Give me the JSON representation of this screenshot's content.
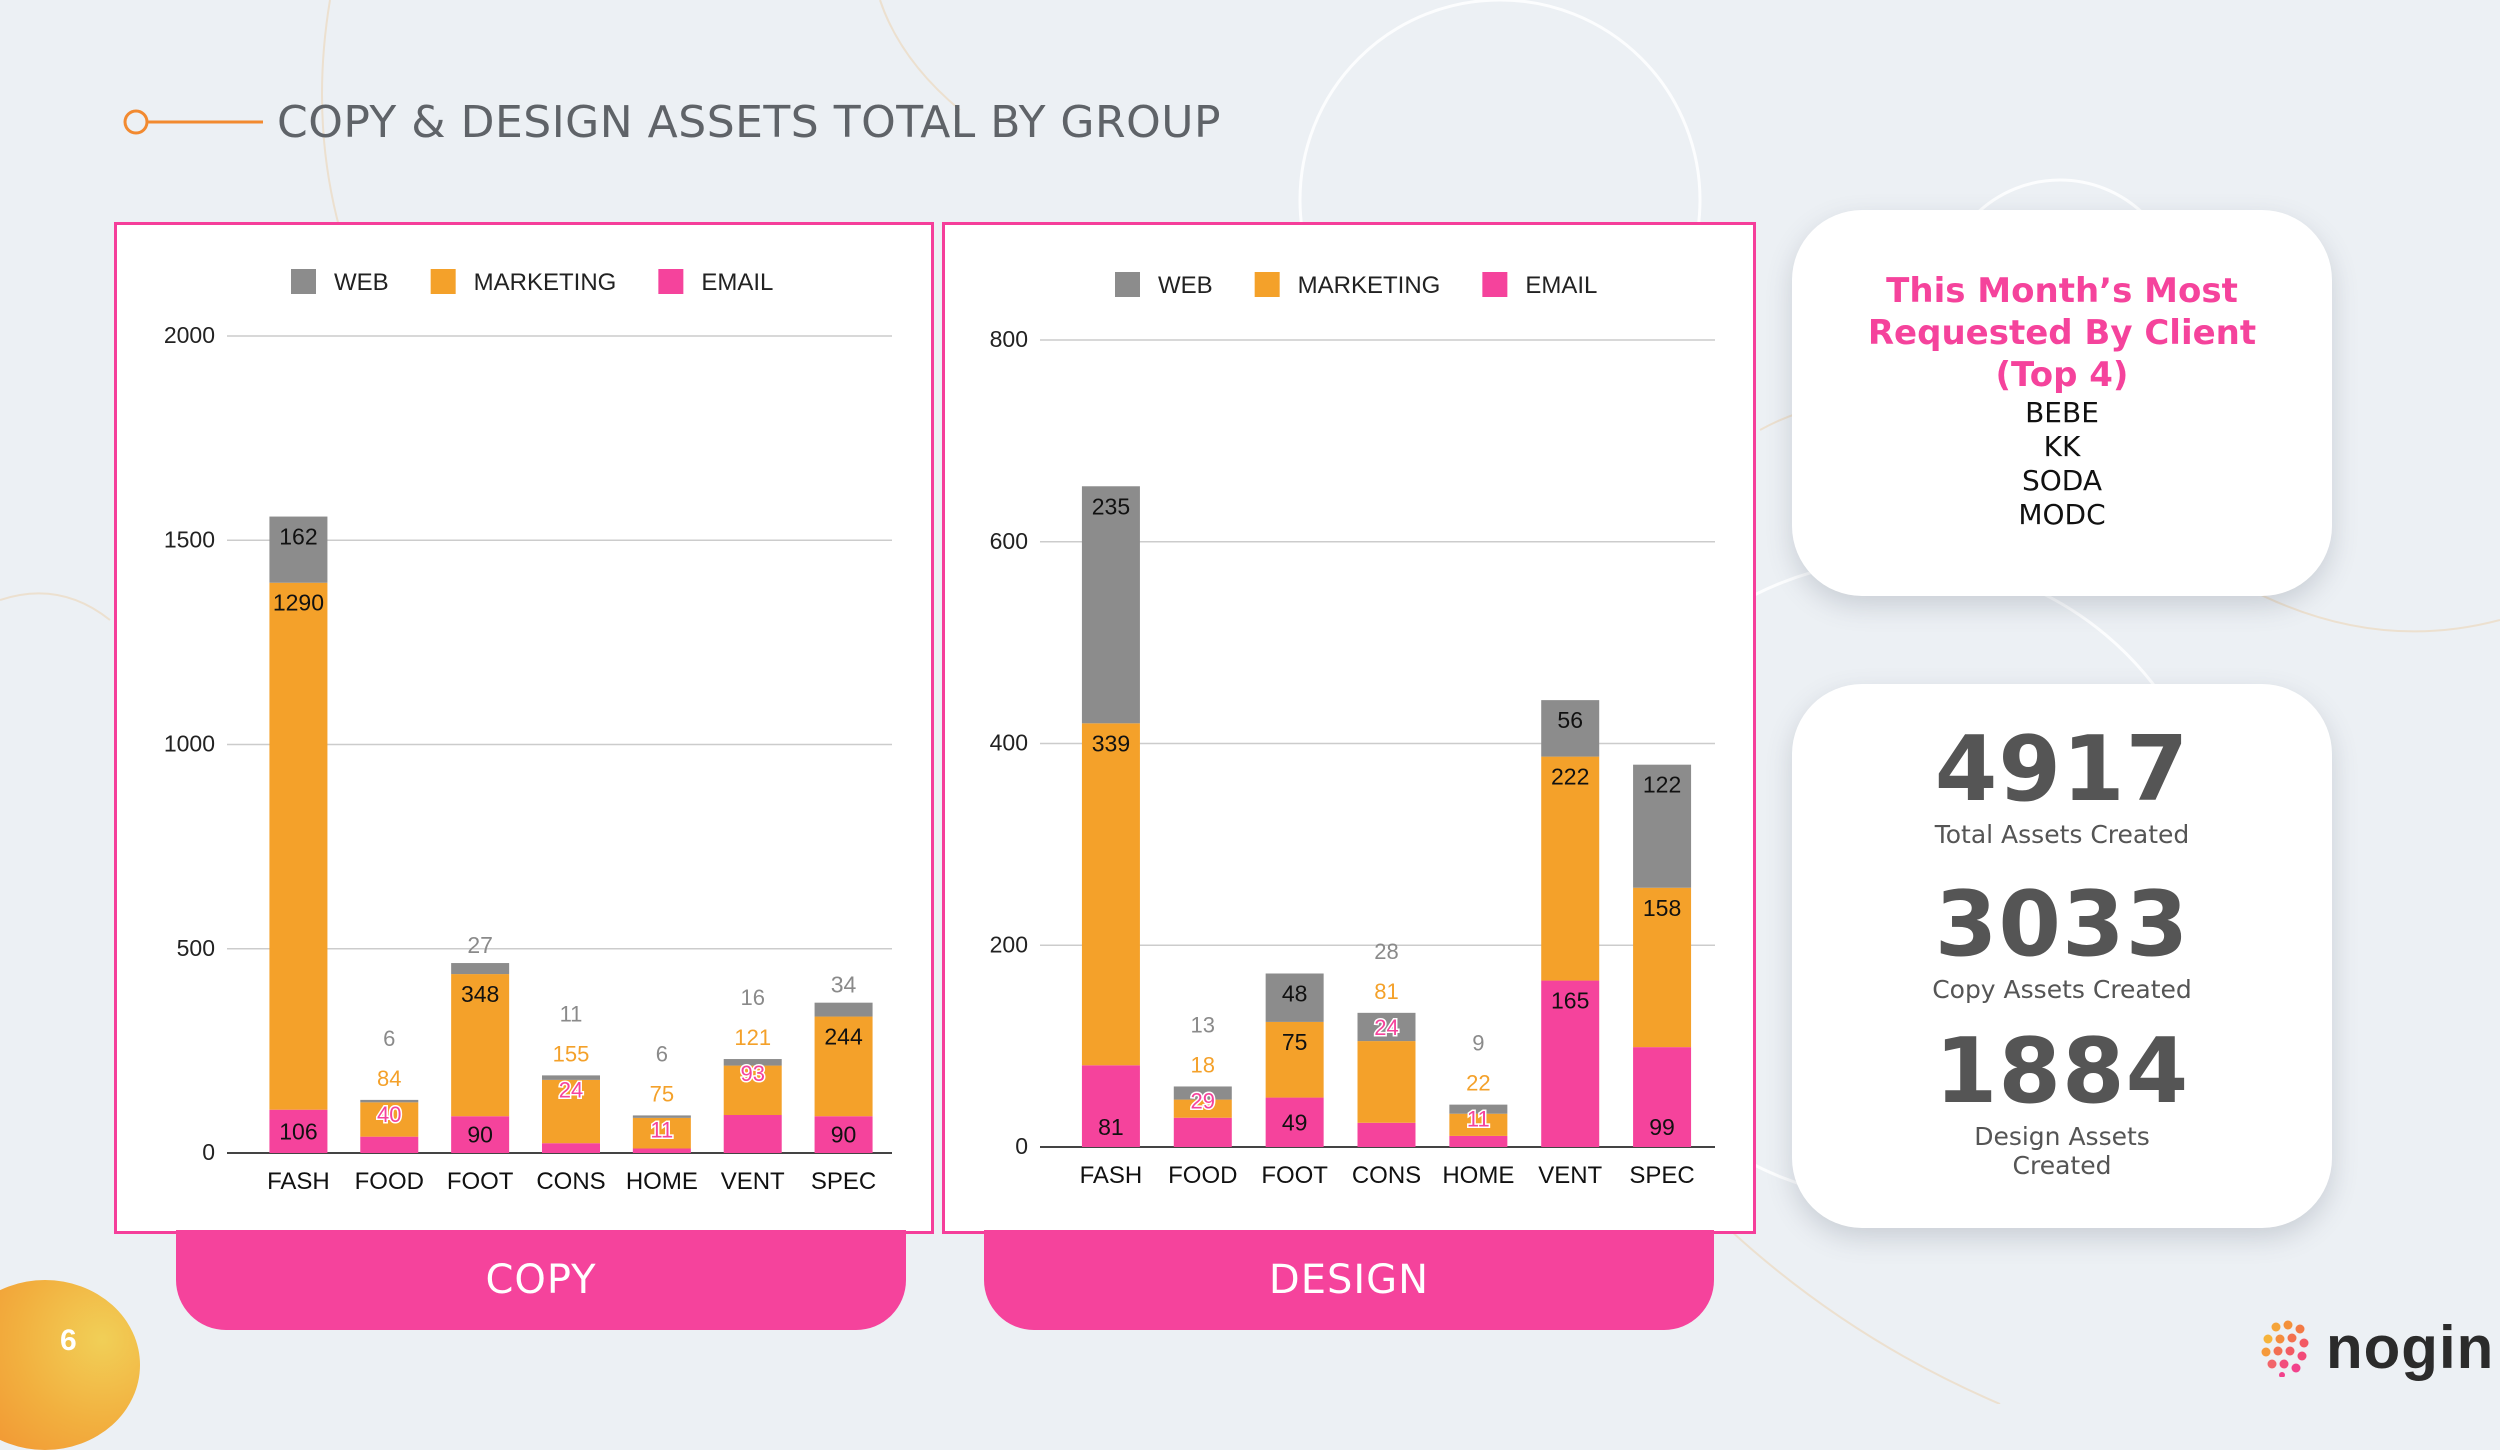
{
  "slide": {
    "title": "COPY & DESIGN ASSETS TOTAL BY GROUP",
    "page_number": "6"
  },
  "tabs": {
    "copy_label": "COPY",
    "design_label": "DESIGN"
  },
  "clients_card": {
    "title": "This Month’s Most Requested By Client (Top 4)",
    "clients": [
      "BEBE",
      "KK",
      "SODA",
      "MODC"
    ]
  },
  "stats": [
    {
      "value": "4917",
      "label": "Total Assets Created"
    },
    {
      "value": "3033",
      "label": "Copy Assets Created"
    },
    {
      "value": "1884",
      "label": "Design Assets Created"
    }
  ],
  "brand": {
    "name": "nogin"
  },
  "colors": {
    "web": "#8c8c8c",
    "marketing": "#f4a12a",
    "email": "#f5439c",
    "accent_orange": "#f28a30"
  },
  "chart_data": [
    {
      "type": "bar",
      "stacked": true,
      "title": "COPY",
      "categories": [
        "FASH",
        "FOOD",
        "FOOT",
        "CONS",
        "HOME",
        "VENT",
        "SPEC"
      ],
      "series": [
        {
          "name": "EMAIL",
          "values": [
            106,
            40,
            90,
            24,
            11,
            93,
            90
          ]
        },
        {
          "name": "MARKETING",
          "values": [
            1290,
            84,
            348,
            155,
            75,
            121,
            244
          ]
        },
        {
          "name": "WEB",
          "values": [
            162,
            6,
            27,
            11,
            6,
            16,
            34
          ]
        }
      ],
      "legend": [
        "WEB",
        "MARKETING",
        "EMAIL"
      ],
      "ylim": [
        0,
        2000
      ],
      "yticks": [
        0,
        500,
        1000,
        1500,
        2000
      ],
      "legend_position": "top-center",
      "grid": true
    },
    {
      "type": "bar",
      "stacked": true,
      "title": "DESIGN",
      "categories": [
        "FASH",
        "FOOD",
        "FOOT",
        "CONS",
        "HOME",
        "VENT",
        "SPEC"
      ],
      "series": [
        {
          "name": "EMAIL",
          "values": [
            81,
            29,
            49,
            24,
            11,
            165,
            99
          ]
        },
        {
          "name": "MARKETING",
          "values": [
            339,
            18,
            75,
            81,
            22,
            222,
            158
          ]
        },
        {
          "name": "WEB",
          "values": [
            235,
            13,
            48,
            28,
            9,
            56,
            122
          ]
        }
      ],
      "legend": [
        "WEB",
        "MARKETING",
        "EMAIL"
      ],
      "ylim": [
        0,
        800
      ],
      "yticks": [
        0,
        200,
        400,
        600,
        800
      ],
      "legend_position": "top-center",
      "grid": true
    }
  ]
}
